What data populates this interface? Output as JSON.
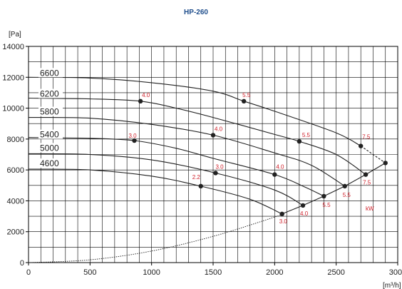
{
  "chart_data": {
    "type": "line",
    "title": "HP-260",
    "ylabel": "[Pa]",
    "xlabel": "[m³/h]",
    "xlim": [
      0,
      3000
    ],
    "ylim": [
      0,
      14000
    ],
    "x_ticks": [
      "0",
      "500",
      "1000",
      "1500",
      "2000",
      "2500",
      "3000"
    ],
    "y_ticks": [
      "0",
      "2000",
      "4000",
      "6000",
      "8000",
      "10000",
      "12000",
      "14000"
    ],
    "grid": true,
    "power_unit": "kW",
    "series": [
      {
        "name": "6600",
        "points": [
          [
            0,
            12000
          ],
          [
            500,
            11950
          ],
          [
            1000,
            11650
          ],
          [
            1500,
            11100
          ],
          [
            1750,
            10450
          ],
          [
            2000,
            9800
          ],
          [
            2500,
            8400
          ],
          [
            2700,
            7550
          ]
        ]
      },
      {
        "name": "6200",
        "points": [
          [
            0,
            10650
          ],
          [
            500,
            10600
          ],
          [
            910,
            10450
          ],
          [
            1200,
            10000
          ],
          [
            1500,
            9400
          ],
          [
            2000,
            8300
          ],
          [
            2200,
            7850
          ],
          [
            2500,
            7000
          ],
          [
            2740,
            5700
          ]
        ]
      },
      {
        "name": "5800",
        "points": [
          [
            0,
            9400
          ],
          [
            500,
            9350
          ],
          [
            1000,
            8950
          ],
          [
            1500,
            8250
          ],
          [
            2000,
            7100
          ],
          [
            2300,
            6300
          ],
          [
            2570,
            4950
          ]
        ]
      },
      {
        "name": "5400",
        "points": [
          [
            0,
            8100
          ],
          [
            500,
            8050
          ],
          [
            860,
            7900
          ],
          [
            1200,
            7400
          ],
          [
            1500,
            6750
          ],
          [
            2000,
            5700
          ],
          [
            2230,
            4950
          ],
          [
            2400,
            4300
          ]
        ]
      },
      {
        "name": "5000",
        "points": [
          [
            0,
            7050
          ],
          [
            500,
            7000
          ],
          [
            1000,
            6650
          ],
          [
            1520,
            5800
          ],
          [
            2000,
            4700
          ],
          [
            2230,
            3700
          ]
        ]
      },
      {
        "name": "4600",
        "points": [
          [
            0,
            6050
          ],
          [
            500,
            6000
          ],
          [
            1000,
            5600
          ],
          [
            1400,
            4950
          ],
          [
            1800,
            4100
          ],
          [
            2060,
            3150
          ]
        ]
      }
    ],
    "power_points": [
      {
        "label": "2.2",
        "x": 1400,
        "y": 4950
      },
      {
        "label": "3.0",
        "x": 860,
        "y": 7900
      },
      {
        "label": "3.0",
        "x": 1520,
        "y": 5800
      },
      {
        "label": "3.0",
        "x": 2060,
        "y": 3150
      },
      {
        "label": "4.0",
        "x": 910,
        "y": 10450
      },
      {
        "label": "4.0",
        "x": 1500,
        "y": 8250
      },
      {
        "label": "4.0",
        "x": 2000,
        "y": 5700
      },
      {
        "label": "4.0",
        "x": 2230,
        "y": 3700
      },
      {
        "label": "5.5",
        "x": 1750,
        "y": 10450
      },
      {
        "label": "5.5",
        "x": 2200,
        "y": 7850
      },
      {
        "label": "5.5",
        "x": 2400,
        "y": 4300
      },
      {
        "label": "5.5",
        "x": 2570,
        "y": 4950
      },
      {
        "label": "7.5",
        "x": 2700,
        "y": 7550
      },
      {
        "label": "7.5",
        "x": 2740,
        "y": 5700
      }
    ],
    "limit_line": [
      [
        2060,
        3150
      ],
      [
        2230,
        3700
      ],
      [
        2400,
        4300
      ],
      [
        2570,
        4950
      ],
      [
        2740,
        5700
      ],
      [
        2900,
        6450
      ]
    ],
    "system_curve": [
      [
        0,
        0
      ],
      [
        500,
        180
      ],
      [
        1000,
        750
      ],
      [
        1500,
        1700
      ],
      [
        2000,
        2950
      ],
      [
        2060,
        3150
      ]
    ]
  }
}
